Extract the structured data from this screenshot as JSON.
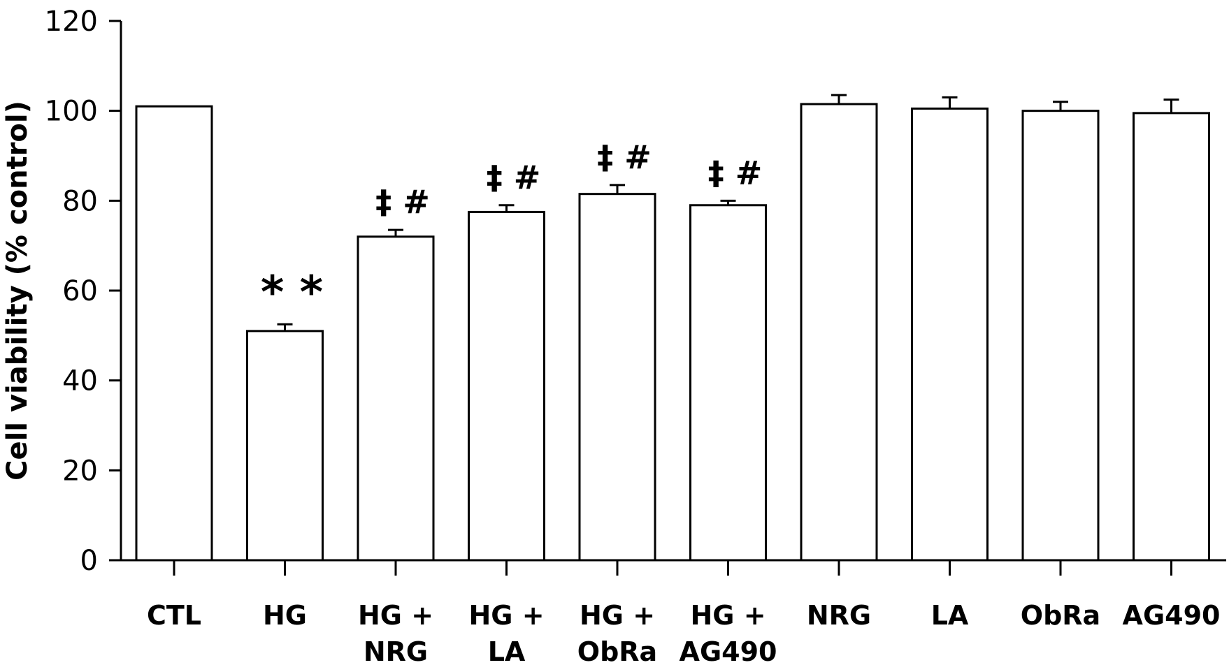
{
  "chart_data": {
    "type": "bar",
    "title": "",
    "xlabel": "",
    "ylabel": "Cell viability (% control)",
    "ylim": [
      0,
      120
    ],
    "yticks": [
      0,
      20,
      40,
      60,
      80,
      100,
      120
    ],
    "grid": false,
    "categories": [
      [
        "CTL"
      ],
      [
        "HG"
      ],
      [
        "HG +",
        "NRG"
      ],
      [
        "HG +",
        "LA"
      ],
      [
        "HG +",
        "ObRa"
      ],
      [
        "HG +",
        "AG490"
      ],
      [
        "NRG"
      ],
      [
        "LA"
      ],
      [
        "ObRa"
      ],
      [
        "AG490"
      ]
    ],
    "values": [
      101,
      51,
      72,
      77.5,
      81.5,
      79,
      101.5,
      100.5,
      100,
      99.5
    ],
    "errors": [
      0,
      1.5,
      1.5,
      1.5,
      2,
      1,
      2,
      2.5,
      2,
      3
    ],
    "annotations": [
      {
        "category_index": 1,
        "text": "* *"
      },
      {
        "category_index": 2,
        "text": "‡ #"
      },
      {
        "category_index": 3,
        "text": "‡ #"
      },
      {
        "category_index": 4,
        "text": "‡ #"
      },
      {
        "category_index": 5,
        "text": "‡ #"
      }
    ]
  }
}
